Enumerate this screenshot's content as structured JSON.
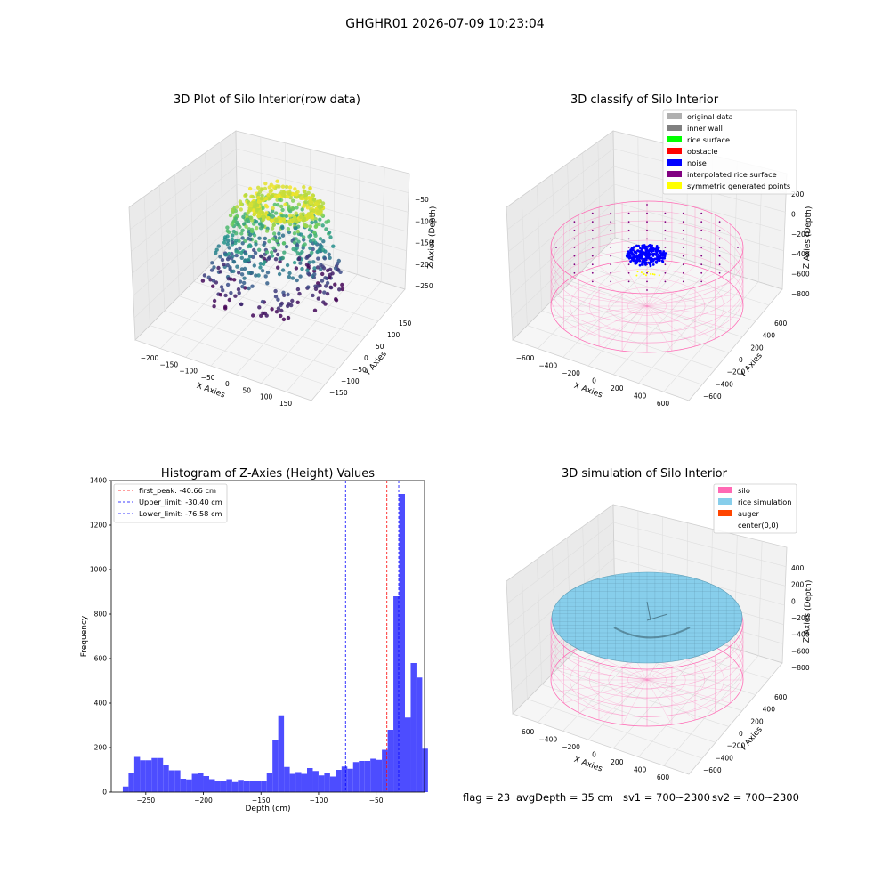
{
  "figure": {
    "suptitle": "GHGHR01 2026-07-09 10:23:04",
    "footer": {
      "flag": "flag = 23",
      "avg_depth": "avgDepth = 35 cm",
      "sv1": "sv1 = 700~2300",
      "sv2": "sv2 = 700~2300"
    }
  },
  "colors": {
    "original_data": "#b0b0b0",
    "inner_wall": "#808080",
    "rice_surface": "#00ff00",
    "obstacle": "#ff0000",
    "noise": "#0000ff",
    "interpolated_rice_surface": "#800080",
    "symmetric_generated_points": "#ffff00",
    "silo": "#ff69b4",
    "rice_simulation": "#87ceeb",
    "auger": "#ff4500",
    "hist_bar": "#4d4dff",
    "peak_line": "#ff0000",
    "limit_line": "#0000ff"
  },
  "chart_data": [
    {
      "type": "scatter",
      "title": "3D Plot of Silo Interior(row data)",
      "xlabel": "X Axies",
      "ylabel": "Y Axies",
      "zlabel": "Z Axies (Depth)",
      "x_ticks": [
        "−200",
        "−150",
        "−100",
        "−50",
        "0",
        "50",
        "100",
        "150"
      ],
      "y_ticks": [
        "−150",
        "−100",
        "−50",
        "0",
        "50",
        "100",
        "150"
      ],
      "z_ticks": [
        "−50",
        "−100",
        "−150",
        "−200",
        "−250"
      ],
      "xlim": [
        -230,
        170
      ],
      "ylim": [
        -170,
        170
      ],
      "zlim": [
        -280,
        -20
      ],
      "colormap": "viridis"
    },
    {
      "type": "scatter",
      "title": "3D classify of Silo Interior",
      "xlabel": "X Axies",
      "ylabel": "Y Axies",
      "zlabel": "Z Axies (Depth)",
      "x_ticks": [
        "−600",
        "−400",
        "−200",
        "0",
        "200",
        "400",
        "600"
      ],
      "y_ticks": [
        "−600",
        "−400",
        "−200",
        "0",
        "200",
        "400",
        "600"
      ],
      "z_ticks": [
        "200",
        "0",
        "−200",
        "−400",
        "−600",
        "−800"
      ],
      "legend": {
        "position": "upper right",
        "entries": [
          {
            "label": "original data",
            "color": "#b0b0b0"
          },
          {
            "label": "inner wall",
            "color": "#808080"
          },
          {
            "label": "rice surface",
            "color": "#00ff00"
          },
          {
            "label": "obstacle",
            "color": "#ff0000"
          },
          {
            "label": "noise",
            "color": "#0000ff"
          },
          {
            "label": "interpolated rice surface",
            "color": "#800080"
          },
          {
            "label": "symmetric generated points",
            "color": "#ffff00"
          }
        ]
      }
    },
    {
      "type": "bar",
      "title": "Histogram of Z-Axies (Height) Values",
      "xlabel": "Depth (cm)",
      "ylabel": "Frequency",
      "xlim": [
        -280,
        -8
      ],
      "ylim": [
        0,
        1400
      ],
      "x_ticks": [
        -250,
        -200,
        -150,
        -100,
        -50
      ],
      "y_ticks": [
        0,
        200,
        400,
        600,
        800,
        1000,
        1200,
        1400
      ],
      "bin_start": -270,
      "bin_width": 5,
      "values": [
        25,
        88,
        158,
        143,
        143,
        153,
        153,
        120,
        98,
        98,
        60,
        57,
        82,
        85,
        72,
        58,
        50,
        50,
        58,
        45,
        55,
        52,
        50,
        50,
        48,
        85,
        233,
        345,
        113,
        82,
        90,
        82,
        108,
        95,
        75,
        85,
        70,
        100,
        115,
        105,
        135,
        140,
        140,
        150,
        145,
        190,
        280,
        880,
        1340,
        335,
        580,
        515,
        195
      ],
      "vlines": [
        {
          "label": "first_peak: -40.66 cm",
          "x": -40.66,
          "color": "#ff0000"
        },
        {
          "label": "Upper_limit: -30.40 cm",
          "x": -30.4,
          "color": "#0000ff"
        },
        {
          "label": "Lower_limit: -76.58 cm",
          "x": -76.58,
          "color": "#0000ff"
        }
      ],
      "legend": {
        "position": "upper left"
      }
    },
    {
      "type": "scatter",
      "title": "3D simulation of Silo Interior",
      "xlabel": "X Axies",
      "ylabel": "Y Axies",
      "zlabel": "Z Axies (Depth)",
      "x_ticks": [
        "−600",
        "−400",
        "−200",
        "0",
        "200",
        "400",
        "600"
      ],
      "y_ticks": [
        "−600",
        "−400",
        "−200",
        "0",
        "200",
        "400",
        "600"
      ],
      "z_ticks": [
        "400",
        "200",
        "0",
        "−200",
        "−400",
        "−600",
        "−800"
      ],
      "legend": {
        "position": "upper right",
        "entries": [
          {
            "label": "silo",
            "color": "#ff69b4"
          },
          {
            "label": "rice simulation",
            "color": "#87ceeb"
          },
          {
            "label": "auger",
            "color": "#ff4500"
          },
          {
            "label": "center(0,0)",
            "color": ""
          }
        ]
      }
    }
  ]
}
